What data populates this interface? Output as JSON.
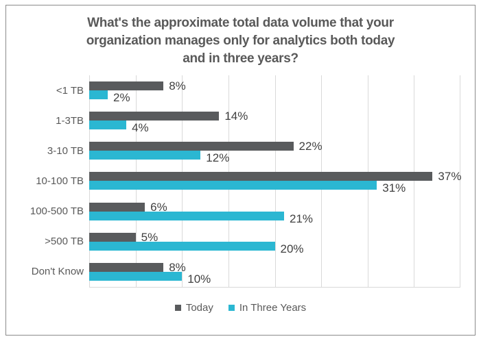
{
  "frame": {
    "background": "#ffffff",
    "border_color": "#8a8a8a"
  },
  "chart_data": {
    "type": "bar",
    "orientation": "horizontal",
    "title": "What's the approximate total data volume that your organization manages only for analytics both today and in three years?",
    "title_lines": [
      "What's the approximate total data volume that your",
      "organization manages only for analytics both today",
      "and in three years?"
    ],
    "categories": [
      "<1 TB",
      "1-3TB",
      "3-10 TB",
      "10-100 TB",
      "100-500 TB",
      ">500 TB",
      "Don't Know"
    ],
    "series": [
      {
        "name": "Today",
        "color": "#595B5D",
        "values": [
          8,
          14,
          22,
          37,
          6,
          5,
          8
        ]
      },
      {
        "name": "In Three Years",
        "color": "#2BB7D2",
        "values": [
          2,
          4,
          12,
          31,
          21,
          20,
          10
        ]
      }
    ],
    "value_suffix": "%",
    "data_labels": true,
    "xlabel": "",
    "ylabel": "",
    "xlim": [
      0,
      40
    ],
    "gridline_step": 5,
    "grid": true,
    "gridline_color": "#d9d9d9",
    "legend_position": "bottom",
    "title_color": "#595959",
    "category_label_color": "#595959",
    "data_label_color": "#404040"
  }
}
